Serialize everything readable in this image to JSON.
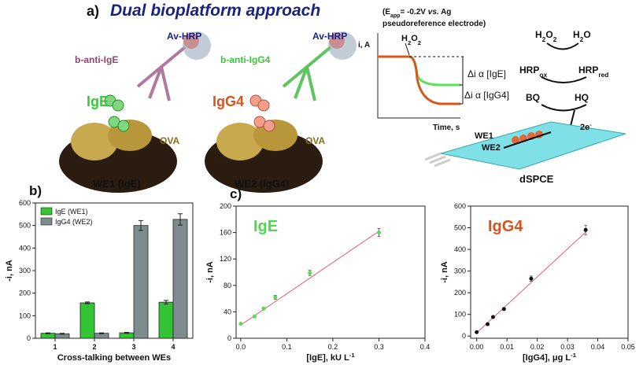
{
  "panel_a": {
    "label": "a)",
    "title": "Dual bioplatform approach",
    "we1": {
      "antibody": "b-anti-IgE",
      "enzyme": "Av-HRP",
      "analyte": "IgE",
      "protein": "OVA",
      "electrode": "WE1 (IgE)"
    },
    "we2": {
      "antibody": "b-anti-IgG4",
      "enzyme": "Av-HRP",
      "analyte": "IgG4",
      "protein": "OVA",
      "electrode": "WE2 (IgG4)"
    },
    "amperometry": {
      "condition_line1": [
        {
          "text": "(E"
        },
        {
          "text": "app",
          "script": "sub"
        },
        {
          "text": "= -0.2V "
        },
        {
          "text": "vs.",
          "style": "italic"
        },
        {
          "text": " Ag"
        }
      ],
      "condition_line2": [
        {
          "text": "pseudoreference  electrode)"
        }
      ],
      "y_axis": "i, A",
      "x_axis": "Time, s",
      "injection": [
        {
          "text": "H"
        },
        {
          "text": "2",
          "script": "sub"
        },
        {
          "text": "O"
        },
        {
          "text": "2",
          "script": "sub"
        }
      ],
      "delta_ige": "Δi α [IgE]",
      "delta_igg4": "Δi α [IgG4]"
    },
    "scheme": {
      "h2o2": [
        {
          "text": "H"
        },
        {
          "text": "2",
          "script": "sub"
        },
        {
          "text": "O"
        },
        {
          "text": "2",
          "script": "sub"
        }
      ],
      "h2o": [
        {
          "text": "H"
        },
        {
          "text": "2",
          "script": "sub"
        },
        {
          "text": "O"
        }
      ],
      "hrp_ox": [
        {
          "text": "HRP"
        },
        {
          "text": "ox",
          "script": "sub"
        }
      ],
      "hrp_red": [
        {
          "text": "HRP"
        },
        {
          "text": "red",
          "script": "sub"
        }
      ],
      "bq": [
        {
          "text": "BQ"
        }
      ],
      "hq": [
        {
          "text": "HQ"
        }
      ],
      "electrons": [
        {
          "text": "2e"
        },
        {
          "text": "-",
          "script": "sup"
        }
      ],
      "we1": "WE1",
      "we2": "WE2",
      "device": "dSPCE"
    }
  },
  "chart_data": [
    {
      "type": "bar",
      "label": "b)",
      "xlabel": "Cross-talking between WEs",
      "ylabel": "-i, nA",
      "categories": [
        "1",
        "2",
        "3",
        "4"
      ],
      "series": [
        {
          "name": "IgE (WE1)",
          "color": "#33c433",
          "values": [
            22,
            157,
            24,
            160
          ],
          "errors": [
            2,
            4,
            2,
            8
          ]
        },
        {
          "name": "IgG4 (WE2)",
          "color": "#7d8c8c",
          "values": [
            20,
            22,
            500,
            527
          ],
          "errors": [
            2,
            2,
            22,
            25
          ]
        }
      ],
      "ylim": [
        0,
        600
      ],
      "yticks": [
        0,
        100,
        200,
        300,
        400,
        500,
        600
      ],
      "legend": "upper left"
    },
    {
      "type": "scatter",
      "label": "c)",
      "annotation": "IgE",
      "annotation_color": "#4fd84f",
      "xlabel": [
        {
          "text": "[IgE], kU L"
        },
        {
          "text": "-1",
          "script": "sup"
        }
      ],
      "ylabel": "-i, nA",
      "x": [
        0,
        0.03,
        0.05,
        0.075,
        0.15,
        0.3
      ],
      "values": [
        22,
        33,
        45,
        62,
        99,
        160
      ],
      "errors": [
        1,
        2,
        2,
        3,
        4,
        6
      ],
      "color": "#55dd55",
      "fit": {
        "x": [
          0,
          0.3
        ],
        "values": [
          20,
          162
        ],
        "color": "#e0607a"
      },
      "xlim": [
        -0.01,
        0.4
      ],
      "xticks": [
        {
          "value": 0,
          "label": "0.0"
        },
        0.1,
        0.2,
        0.3,
        0.4
      ],
      "ylim": [
        0,
        200
      ],
      "yticks": [
        0,
        40,
        80,
        120,
        160,
        200
      ]
    },
    {
      "type": "scatter",
      "annotation": "IgG4",
      "annotation_color": "#d2541e",
      "xlabel": [
        {
          "text": "[IgG4], μg L"
        },
        {
          "text": "-1",
          "script": "sup"
        }
      ],
      "ylabel": "-i, nA",
      "x": [
        0,
        0.0036,
        0.0054,
        0.009,
        0.018,
        0.036
      ],
      "values": [
        18,
        55,
        88,
        125,
        265,
        490
      ],
      "errors": [
        3,
        4,
        4,
        5,
        12,
        22
      ],
      "color": "#111111",
      "fit": {
        "x": [
          0,
          0.036
        ],
        "values": [
          15,
          480
        ],
        "color": "#e0607a"
      },
      "xlim": [
        -0.002,
        0.05
      ],
      "xticks": [
        {
          "value": 0,
          "label": "0.00"
        },
        0.01,
        0.02,
        0.03,
        0.04,
        0.05
      ],
      "ylim": [
        -10,
        600
      ],
      "yticks": [
        0,
        100,
        200,
        300,
        400,
        500,
        600
      ]
    }
  ]
}
